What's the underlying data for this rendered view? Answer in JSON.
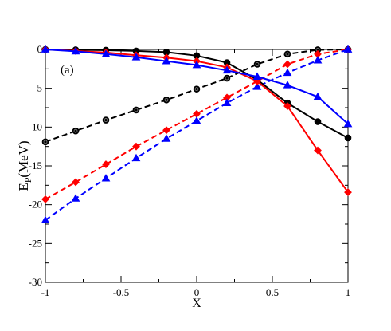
{
  "chart_data": {
    "type": "line",
    "panel_label": "(a)",
    "xlabel": "X",
    "ylabel_main": "E",
    "ylabel_sub": "P",
    "ylabel_unit": "(MeV)",
    "xlim": [
      -1,
      1
    ],
    "ylim": [
      -30,
      0
    ],
    "xticks": [
      -1,
      -0.5,
      0,
      0.5,
      1
    ],
    "xtick_labels": [
      "-1",
      "-0.5",
      "0",
      "0.5",
      "1"
    ],
    "yticks": [
      0,
      -5,
      -10,
      -15,
      -20,
      -25,
      -30
    ],
    "ytick_labels": [
      "0",
      "-5",
      "-10",
      "-15",
      "-20",
      "-25",
      "-30"
    ],
    "grid": false,
    "x": [
      -1,
      -0.8,
      -0.6,
      -0.4,
      -0.2,
      0,
      0.2,
      0.4,
      0.6,
      0.8,
      1
    ],
    "series": [
      {
        "color": "#000000",
        "dash": "solid",
        "marker": "circle",
        "values": [
          0,
          -0.05,
          -0.1,
          -0.2,
          -0.35,
          -0.8,
          -1.7,
          -3.9,
          -6.9,
          -9.3,
          -11.4
        ]
      },
      {
        "color": "#ff0000",
        "dash": "solid",
        "marker": "diamond",
        "values": [
          0,
          -0.2,
          -0.4,
          -0.75,
          -1.05,
          -1.5,
          -2.3,
          -4.1,
          -7.3,
          -13.0,
          -18.4
        ]
      },
      {
        "color": "#0000ff",
        "dash": "solid",
        "marker": "triangle",
        "values": [
          0,
          -0.25,
          -0.6,
          -1.0,
          -1.5,
          -2.0,
          -2.7,
          -3.5,
          -4.6,
          -6.1,
          -9.6
        ]
      },
      {
        "color": "#000000",
        "dash": "dashed",
        "marker": "circle",
        "values": [
          -11.9,
          -10.5,
          -9.1,
          -7.8,
          -6.5,
          -5.1,
          -3.7,
          -1.9,
          -0.6,
          -0.05,
          0
        ]
      },
      {
        "color": "#ff0000",
        "dash": "dashed",
        "marker": "diamond",
        "values": [
          -19.3,
          -17.1,
          -14.8,
          -12.5,
          -10.4,
          -8.3,
          -6.2,
          -4.1,
          -1.9,
          -0.6,
          0
        ]
      },
      {
        "color": "#0000ff",
        "dash": "dashed",
        "marker": "triangle",
        "values": [
          -22.0,
          -19.2,
          -16.6,
          -14.0,
          -11.5,
          -9.2,
          -6.9,
          -4.8,
          -3.0,
          -1.4,
          0
        ]
      }
    ]
  }
}
